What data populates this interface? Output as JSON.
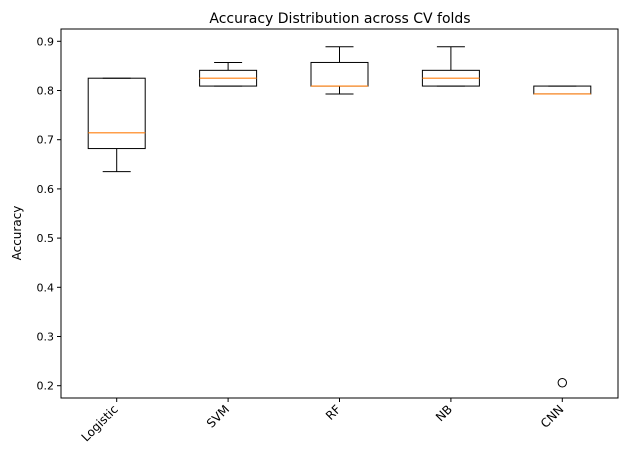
{
  "chart_data": {
    "type": "box",
    "title": "Accuracy Distribution across CV folds",
    "xlabel": "",
    "ylabel": "Accuracy",
    "ylim": [
      0.175,
      0.925
    ],
    "yticks": [
      0.2,
      0.3,
      0.4,
      0.5,
      0.6,
      0.7,
      0.8,
      0.9
    ],
    "categories": [
      "Logistic",
      "SVM",
      "RF",
      "NB",
      "CNN"
    ],
    "boxes": [
      {
        "category": "Logistic",
        "whisker_low": 0.635,
        "q1": 0.682,
        "median": 0.714,
        "q3": 0.825,
        "whisker_high": 0.825,
        "outliers": []
      },
      {
        "category": "SVM",
        "whisker_low": 0.809,
        "q1": 0.809,
        "median": 0.825,
        "q3": 0.841,
        "whisker_high": 0.857,
        "outliers": []
      },
      {
        "category": "RF",
        "whisker_low": 0.793,
        "q1": 0.809,
        "median": 0.809,
        "q3": 0.857,
        "whisker_high": 0.889,
        "outliers": []
      },
      {
        "category": "NB",
        "whisker_low": 0.809,
        "q1": 0.809,
        "median": 0.825,
        "q3": 0.841,
        "whisker_high": 0.889,
        "outliers": []
      },
      {
        "category": "CNN",
        "whisker_low": 0.793,
        "q1": 0.793,
        "median": 0.793,
        "q3": 0.809,
        "whisker_high": 0.809,
        "outliers": [
          0.206
        ]
      }
    ],
    "grid": false,
    "legend": "none",
    "colors": {
      "box": "#000000",
      "median": "#ff7f0e",
      "flier": "#000000"
    }
  }
}
